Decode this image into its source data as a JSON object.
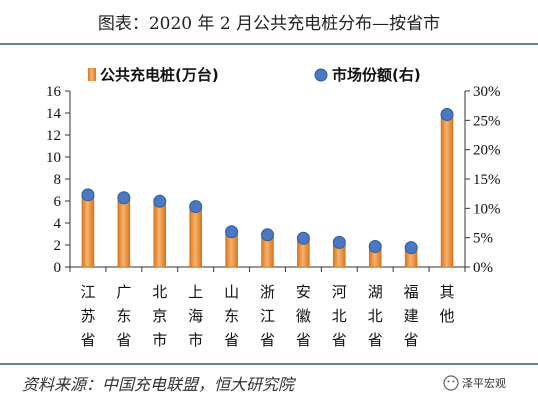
{
  "title": "图表：2020 年 2 月公共充电桩分布—按省市",
  "source": "资料来源：中国充电联盟，恒大研究院",
  "watermark": "泽平宏观",
  "colors": {
    "bar_top": "#f3a35a",
    "bar_mid": "#e8862f",
    "bar_edge": "#c86a1c",
    "dot": "#4a78c2",
    "dot_edge": "#2f5aa0",
    "divider": "#5a7fae"
  },
  "chart_data": {
    "type": "bar",
    "categories": [
      "江苏省",
      "广东省",
      "北京市",
      "上海市",
      "山东省",
      "浙江省",
      "安徽省",
      "河北省",
      "湖北省",
      "福建省",
      "其他"
    ],
    "series": [
      {
        "name": "公共充电桩(万台)",
        "type": "bar",
        "axis": "left",
        "values": [
          6.4,
          6.1,
          5.8,
          5.4,
          3.0,
          2.7,
          2.4,
          2.1,
          1.7,
          1.6,
          13.6
        ]
      },
      {
        "name": "市场份额(右)",
        "type": "scatter",
        "axis": "right",
        "values": [
          12.3,
          11.8,
          11.2,
          10.3,
          6.0,
          5.5,
          4.9,
          4.2,
          3.5,
          3.3,
          26.0
        ]
      }
    ],
    "y_left": {
      "min": 0,
      "max": 16,
      "step": 2,
      "ticks": [
        "0",
        "2",
        "4",
        "6",
        "8",
        "10",
        "12",
        "14",
        "16"
      ]
    },
    "y_right": {
      "min": 0,
      "max": 30,
      "step": 5,
      "ticks": [
        "0%",
        "5%",
        "10%",
        "15%",
        "20%",
        "25%",
        "30%"
      ]
    },
    "legend_position": "top",
    "grid": false
  }
}
